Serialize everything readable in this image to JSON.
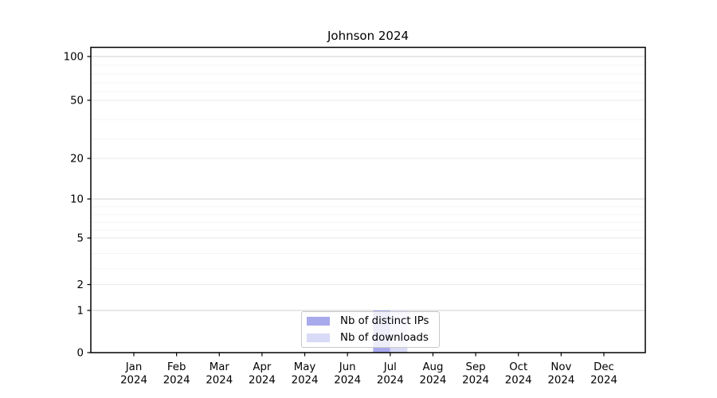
{
  "chart_data": {
    "type": "bar",
    "title": "Johnson 2024",
    "categories": [
      "Jan",
      "Feb",
      "Mar",
      "Apr",
      "May",
      "Jun",
      "Jul",
      "Aug",
      "Sep",
      "Oct",
      "Nov",
      "Dec"
    ],
    "x_tick_second_line": "2024",
    "series": [
      {
        "name": "Nb of distinct IPs",
        "color": "#a9aaec",
        "values": [
          0,
          0,
          0,
          0,
          0,
          0,
          1,
          0,
          0,
          0,
          0,
          0
        ]
      },
      {
        "name": "Nb of downloads",
        "color": "#d9daf5",
        "values": [
          0,
          0,
          0,
          0,
          0,
          0,
          1,
          0,
          0,
          0,
          0,
          0
        ]
      }
    ],
    "y_axis": {
      "scale": "pseudo-log",
      "ticks": [
        0,
        1,
        2,
        5,
        10,
        20,
        50,
        100
      ],
      "minor_ticks": [
        3,
        4,
        6,
        7,
        8,
        9,
        30,
        40,
        60,
        70,
        80,
        90
      ],
      "ylim": [
        0,
        110
      ]
    },
    "legend": {
      "position": "lower center"
    },
    "colors": {
      "grid_power10": "#d2d2d2",
      "grid_major": "#eaeaea",
      "grid_minor": "#f4f4f4",
      "spine": "#000000",
      "tick_label": "#000000",
      "background": "#ffffff"
    }
  }
}
